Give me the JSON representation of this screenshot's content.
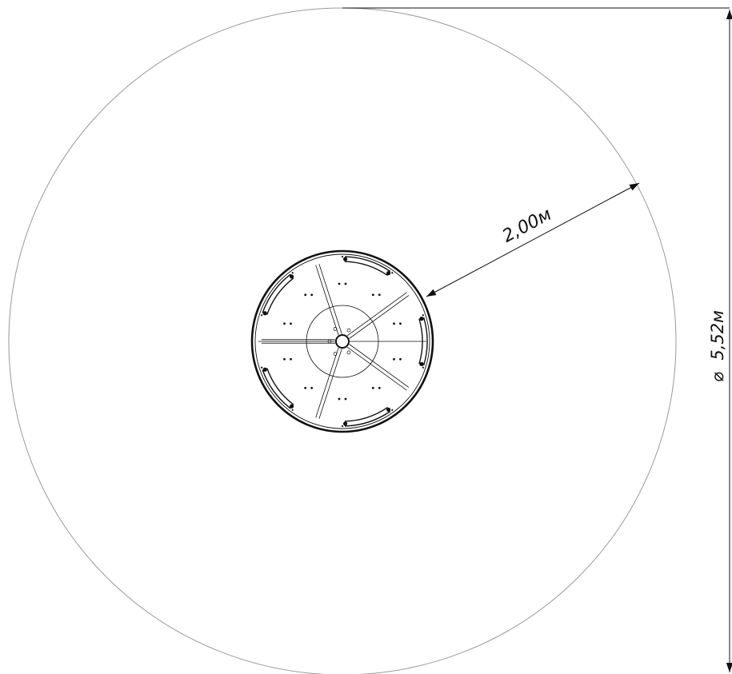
{
  "drawing": {
    "dimensions": {
      "clearance": {
        "label": "2,00м",
        "value_m": 2.0
      },
      "diameter": {
        "label": "5,52м",
        "symbol": "⌀",
        "value_m": 5.52
      }
    },
    "equipment": {
      "spokes": 5,
      "seats": 5
    },
    "colors": {
      "zone_outline": "#9a9a9a",
      "line": "#111111",
      "background": "#ffffff"
    }
  }
}
